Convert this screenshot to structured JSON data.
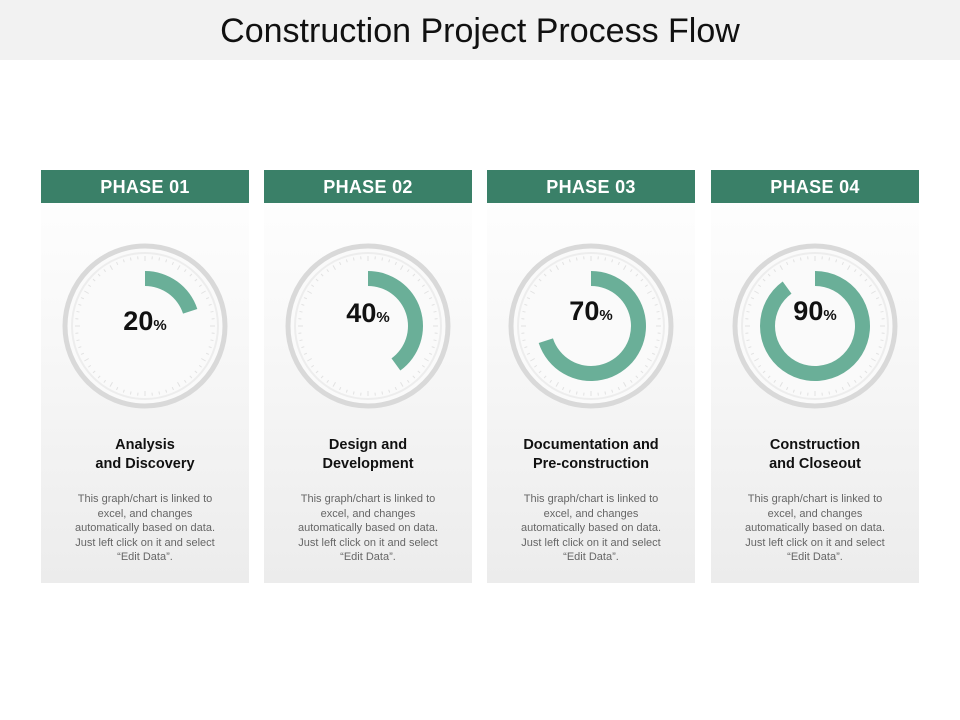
{
  "slide": {
    "title": "Construction Project Process Flow"
  },
  "colors": {
    "header": "#3a8068",
    "ring": "#6aaf98",
    "dial": "#d9d9d9"
  },
  "phases": [
    {
      "label": "PHASE 01",
      "percent": 20,
      "value": "20",
      "unit": "%",
      "title_line1": "Analysis",
      "title_line2": "and Discovery",
      "description": "This graph/chart is linked to excel, and changes automatically based on data. Just left click on it and select “Edit Data”."
    },
    {
      "label": "PHASE 02",
      "percent": 40,
      "value": "40",
      "unit": "%",
      "title_line1": "Design and",
      "title_line2": "Development",
      "description": "This graph/chart is linked to excel, and changes automatically based on data. Just left click on it and select “Edit Data”."
    },
    {
      "label": "PHASE 03",
      "percent": 70,
      "value": "70",
      "unit": "%",
      "title_line1": "Documentation and",
      "title_line2": "Pre-construction",
      "description": "This graph/chart is linked to excel, and changes automatically based on data. Just left click on it and select “Edit Data”."
    },
    {
      "label": "PHASE 04",
      "percent": 90,
      "value": "90",
      "unit": "%",
      "title_line1": "Construction",
      "title_line2": "and Closeout",
      "description": "This graph/chart is linked to excel, and changes automatically based on data. Just left click on it and select “Edit Data”."
    }
  ]
}
